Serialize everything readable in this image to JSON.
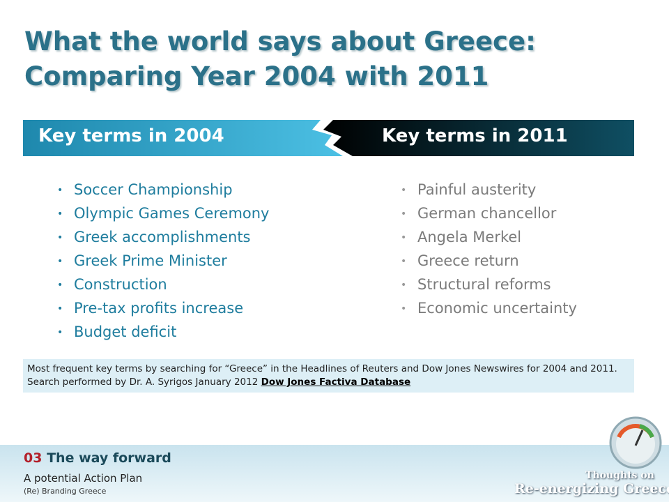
{
  "title": {
    "line1": "What the world says about Greece:",
    "line2": "Comparing Year 2004 with 2011"
  },
  "columns": [
    {
      "heading": "Key terms in 2004",
      "items": [
        "Soccer Championship",
        "Olympic Games Ceremony",
        "Greek accomplishments",
        "Greek Prime Minister",
        "Construction",
        "Pre-tax profits increase",
        "Budget deficit"
      ]
    },
    {
      "heading": "Key terms in 2011",
      "items": [
        "Painful austerity",
        "German chancellor",
        "Angela Merkel",
        "Greece return",
        "Structural reforms",
        "Economic uncertainty"
      ]
    }
  ],
  "note": {
    "text": "Most frequent key terms by searching for “Greece” in the Headlines of Reuters and Dow Jones Newswires for 2004 and 2011. Search performed by Dr. A. Syrigos January 2012",
    "link": "Dow Jones Factiva Database"
  },
  "footer": {
    "number": "03",
    "section": "The way forward",
    "line1": "A potential Action Plan",
    "line2": "(Re) Branding Greece"
  },
  "logo": {
    "line1": "Thoughts on",
    "line2": "Re-energizing Greece"
  }
}
